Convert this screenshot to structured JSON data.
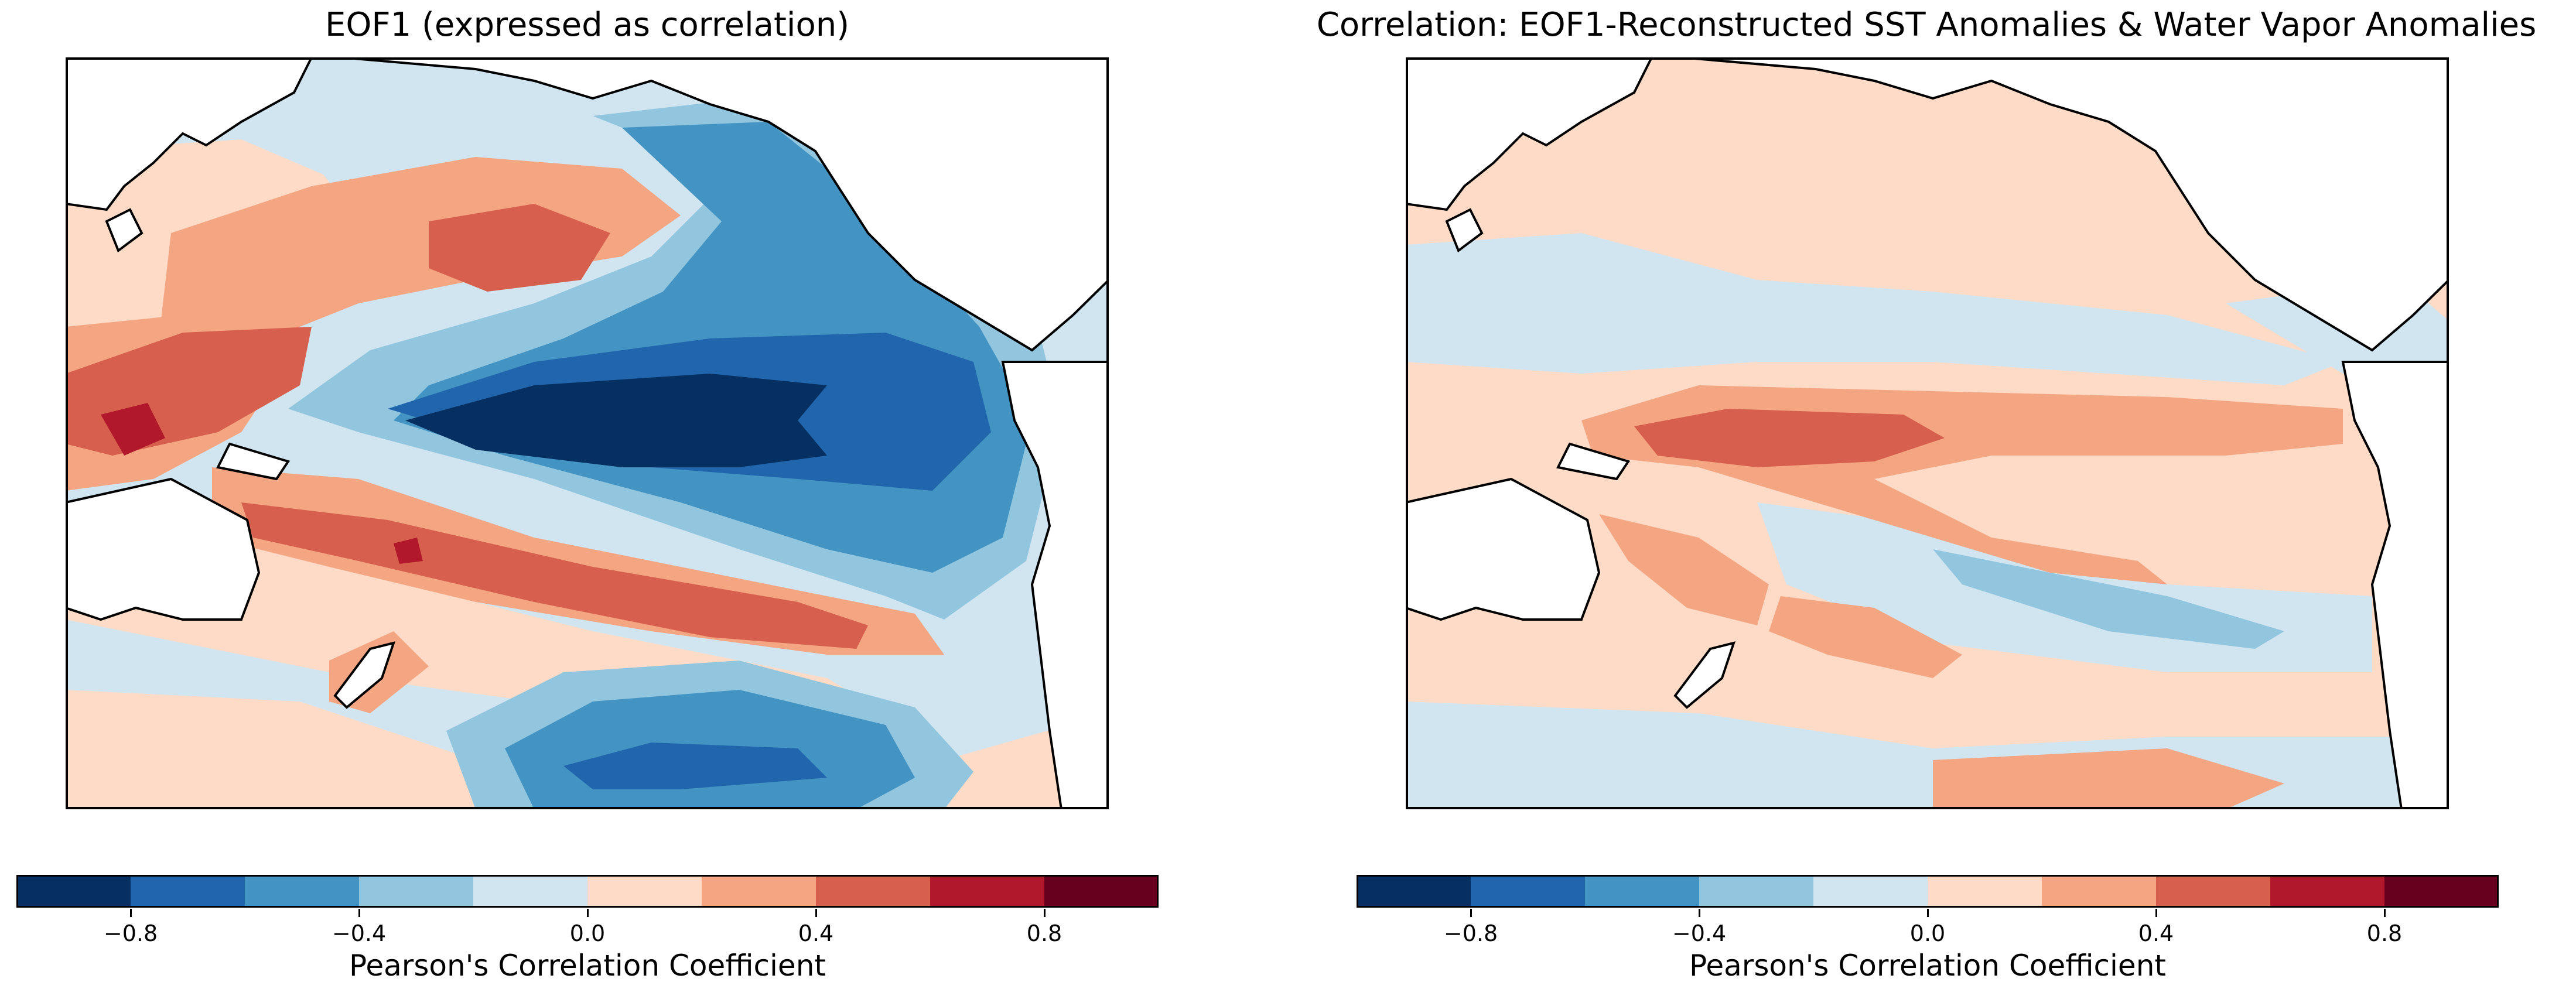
{
  "panels": [
    {
      "title": "EOF1 (expressed as correlation)",
      "colorbar_label": "Pearson's Correlation Coefficient"
    },
    {
      "title": "Correlation: EOF1-Reconstructed SST Anomalies & Water Vapor Anomalies",
      "colorbar_label": "Pearson's Correlation Coefficient"
    }
  ],
  "colorbar": {
    "levels": [
      -1.0,
      -0.8,
      -0.6,
      -0.4,
      -0.2,
      0.0,
      0.2,
      0.4,
      0.6,
      0.8,
      1.0
    ],
    "ticks": [
      -0.8,
      -0.4,
      0.0,
      0.4,
      0.8
    ],
    "tick_labels": [
      "−0.8",
      "−0.4",
      "0.0",
      "0.4",
      "0.8"
    ],
    "colormap": "RdBu_r",
    "colors": [
      "#053061",
      "#2166ac",
      "#4393c3",
      "#92c5de",
      "#d1e5f0",
      "#fddbc7",
      "#f4a582",
      "#d6604d",
      "#b2182b",
      "#67001f"
    ],
    "land_color": "#ffffff",
    "coastline_color": "#000000"
  },
  "map": {
    "region": "Pacific Ocean"
  },
  "chart_data": [
    {
      "type": "heatmap",
      "title": "EOF1 (expressed as correlation)",
      "colorbar_label": "Pearson's Correlation Coefficient",
      "range": [
        -1.0,
        1.0
      ],
      "features": [
        {
          "value": -0.9,
          "region": "Central-eastern equatorial Pacific core"
        },
        {
          "value": -0.7,
          "region": "Eastern equatorial Pacific / Central American coast"
        },
        {
          "value": 0.5,
          "region": "Western Pacific / Maritime Continent"
        },
        {
          "value": 0.5,
          "region": "Northwest Pacific horseshoe arm"
        },
        {
          "value": 0.5,
          "region": "South Pacific Convergence Zone arm"
        },
        {
          "value": -0.6,
          "region": "Southeast Pacific midlatitudes"
        }
      ]
    },
    {
      "type": "heatmap",
      "title": "Correlation: EOF1-Reconstructed SST Anomalies & Water Vapor Anomalies",
      "colorbar_label": "Pearson's Correlation Coefficient",
      "range": [
        -1.0,
        1.0
      ],
      "features": [
        {
          "value": 0.5,
          "region": "Central equatorial Pacific band"
        },
        {
          "value": 0.3,
          "region": "Eastern equatorial Pacific"
        },
        {
          "value": 0.3,
          "region": "South Pacific diagonal band"
        },
        {
          "value": -0.3,
          "region": "Southeast of SPCZ diagonal band"
        },
        {
          "value": 0.1,
          "region": "Most of the basin"
        }
      ]
    }
  ]
}
